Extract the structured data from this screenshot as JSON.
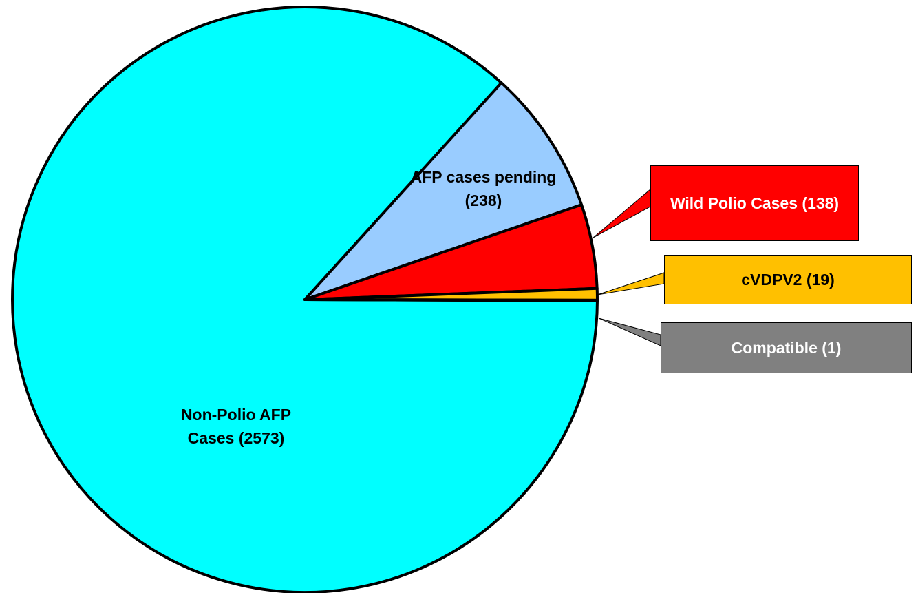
{
  "chart_data": {
    "type": "pie",
    "categories": [
      "Non-Polio AFP Cases (2573)",
      "AFP cases pending (238)",
      "Wild Polio Cases (138)",
      "cVDPV2 (19)",
      "Compatible (1)"
    ],
    "values": [
      2573,
      238,
      138,
      19,
      1
    ],
    "colors": [
      "#00ffff",
      "#99ccff",
      "#ff0000",
      "#ffc000",
      "#808080"
    ]
  }
}
